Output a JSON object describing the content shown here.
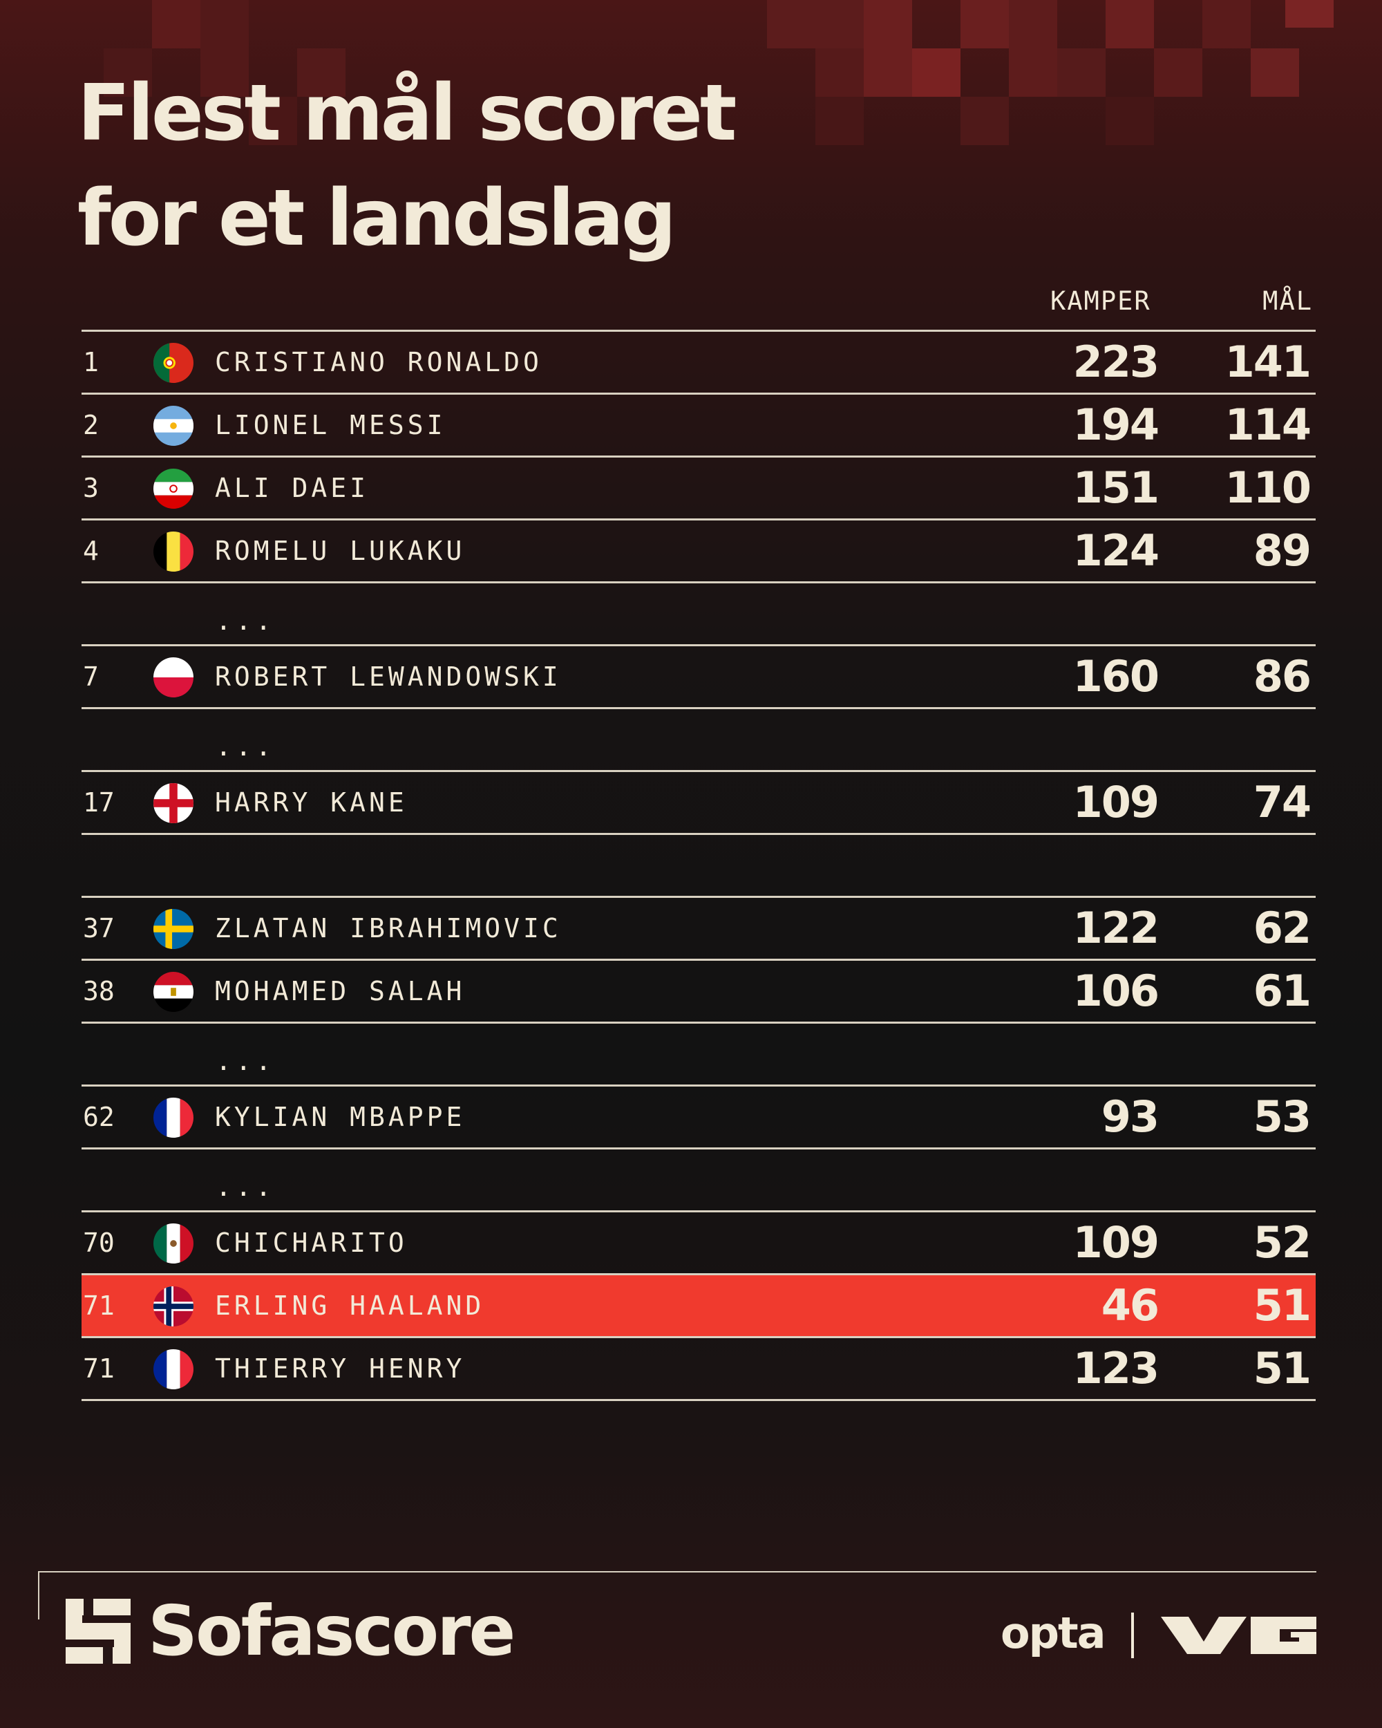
{
  "title": {
    "line1": "Flest mål scoret",
    "line2": "for et landslag"
  },
  "columns": {
    "kamper": "KAMPER",
    "mal": "MÅL"
  },
  "rows": [
    {
      "type": "player",
      "rank": "1",
      "flag": "portugal-flag-icon",
      "name": "CRISTIANO RONALDO",
      "kamper": "223",
      "mal": "141"
    },
    {
      "type": "player",
      "rank": "2",
      "flag": "argentina-flag-icon",
      "name": "LIONEL MESSI",
      "kamper": "194",
      "mal": "114"
    },
    {
      "type": "player",
      "rank": "3",
      "flag": "iran-flag-icon",
      "name": "ALI DAEI",
      "kamper": "151",
      "mal": "110"
    },
    {
      "type": "player",
      "rank": "4",
      "flag": "belgium-flag-icon",
      "name": "ROMELU LUKAKU",
      "kamper": "124",
      "mal": "89"
    },
    {
      "type": "gap",
      "text": "..."
    },
    {
      "type": "player",
      "rank": "7",
      "flag": "poland-flag-icon",
      "name": "ROBERT LEWANDOWSKI",
      "kamper": "160",
      "mal": "86"
    },
    {
      "type": "gap",
      "text": "..."
    },
    {
      "type": "player",
      "rank": "17",
      "flag": "england-flag-icon",
      "name": "HARRY KANE",
      "kamper": "109",
      "mal": "74"
    },
    {
      "type": "gap",
      "text": ""
    },
    {
      "type": "player",
      "rank": "37",
      "flag": "sweden-flag-icon",
      "name": "ZLATAN IBRAHIMOVIC",
      "kamper": "122",
      "mal": "62"
    },
    {
      "type": "player",
      "rank": "38",
      "flag": "egypt-flag-icon",
      "name": "MOHAMED SALAH",
      "kamper": "106",
      "mal": "61"
    },
    {
      "type": "gap",
      "text": "..."
    },
    {
      "type": "player",
      "rank": "62",
      "flag": "france-flag-icon",
      "name": "KYLIAN MBAPPE",
      "kamper": "93",
      "mal": "53"
    },
    {
      "type": "gap",
      "text": "..."
    },
    {
      "type": "player",
      "rank": "70",
      "flag": "mexico-flag-icon",
      "name": "CHICHARITO",
      "kamper": "109",
      "mal": "52"
    },
    {
      "type": "player",
      "rank": "71",
      "flag": "norway-flag-icon",
      "name": "ERLING HAALAND",
      "kamper": "46",
      "mal": "51",
      "highlight": true
    },
    {
      "type": "player",
      "rank": "71",
      "flag": "france-flag-icon",
      "name": "THIERRY HENRY",
      "kamper": "123",
      "mal": "51"
    }
  ],
  "colors": {
    "highlight": "#f03a2e",
    "text": "#f2ead8",
    "rule": "#d9d1c1"
  },
  "footer": {
    "sofascore": "Sofascore",
    "opta": "opta",
    "vg": "VG"
  }
}
